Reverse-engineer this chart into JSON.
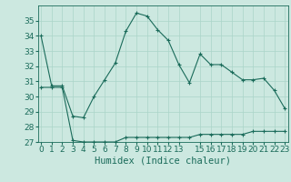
{
  "x_upper": [
    0,
    1,
    2,
    3,
    4,
    5,
    6,
    7,
    8,
    9,
    10,
    11,
    12,
    13,
    14,
    15,
    16,
    17,
    18,
    19,
    20,
    21,
    22,
    23
  ],
  "y_upper": [
    34.0,
    30.7,
    30.7,
    28.7,
    28.6,
    30.0,
    31.1,
    32.2,
    34.3,
    35.5,
    35.3,
    34.4,
    33.7,
    32.1,
    30.9,
    32.8,
    32.1,
    32.1,
    31.6,
    31.1,
    31.1,
    31.2,
    30.4,
    29.2
  ],
  "x_lower": [
    0,
    1,
    2,
    3,
    4,
    5,
    6,
    7,
    8,
    9,
    10,
    11,
    12,
    13,
    14,
    15,
    16,
    17,
    18,
    19,
    20,
    21,
    22,
    23
  ],
  "y_lower": [
    30.6,
    30.6,
    30.6,
    27.1,
    27.0,
    27.0,
    27.0,
    27.0,
    27.3,
    27.3,
    27.3,
    27.3,
    27.3,
    27.3,
    27.3,
    27.5,
    27.5,
    27.5,
    27.5,
    27.5,
    27.7,
    27.7,
    27.7,
    27.7
  ],
  "line_color": "#1a6b5a",
  "bg_color": "#cce8e0",
  "grid_color": "#aad4c8",
  "xlabel": "Humidex (Indice chaleur)",
  "xlabel_fontsize": 7.5,
  "tick_fontsize": 6.5,
  "ylim": [
    27,
    36
  ],
  "yticks": [
    27,
    28,
    29,
    30,
    31,
    32,
    33,
    34,
    35
  ],
  "xlim": [
    -0.3,
    23.3
  ],
  "xtick_positions": [
    0,
    1,
    2,
    3,
    4,
    5,
    6,
    7,
    8,
    9,
    10,
    11,
    12,
    13,
    15,
    16,
    17,
    18,
    19,
    20,
    21,
    22,
    23
  ],
  "xtick_labels": [
    "0",
    "1",
    "2",
    "3",
    "4",
    "5",
    "6",
    "7",
    "8",
    "9",
    "10",
    "11",
    "12",
    "13",
    "15",
    "16",
    "17",
    "18",
    "19",
    "20",
    "21",
    "22",
    "23"
  ]
}
